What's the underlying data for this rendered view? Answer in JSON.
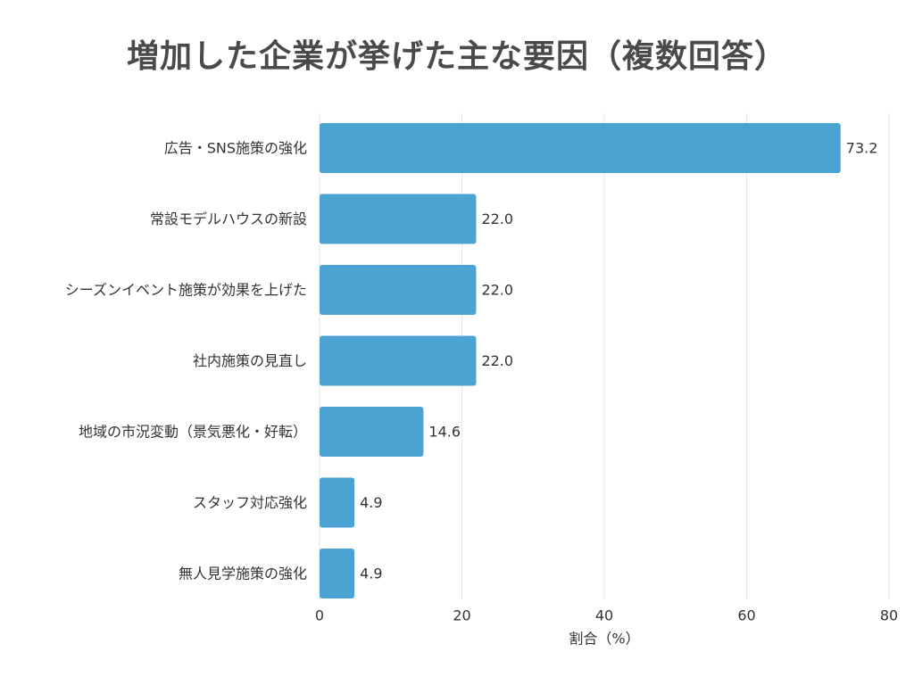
{
  "chart_data": {
    "type": "bar",
    "orientation": "horizontal",
    "title": "増加した企業が挙げた主な要因（複数回答）",
    "xlabel": "割合（%）",
    "ylabel": "",
    "xlim": [
      0,
      80
    ],
    "xticks": [
      0,
      20,
      40,
      60,
      80
    ],
    "grid": true,
    "categories": [
      "広告・SNS施策の強化",
      "常設モデルハウスの新設",
      "シーズンイベント施策が効果を上げた",
      "社内施策の見直し",
      "地域の市況変動（景気悪化・好転）",
      "スタッフ対応強化",
      "無人見学施策の強化"
    ],
    "values": [
      73.2,
      22.0,
      22.0,
      22.0,
      14.6,
      4.9,
      4.9
    ],
    "value_labels": [
      "73.2",
      "22.0",
      "22.0",
      "22.0",
      "14.6",
      "4.9",
      "4.9"
    ],
    "bar_color": "#4aa3d1",
    "grid_color": "#e6e6e6"
  }
}
